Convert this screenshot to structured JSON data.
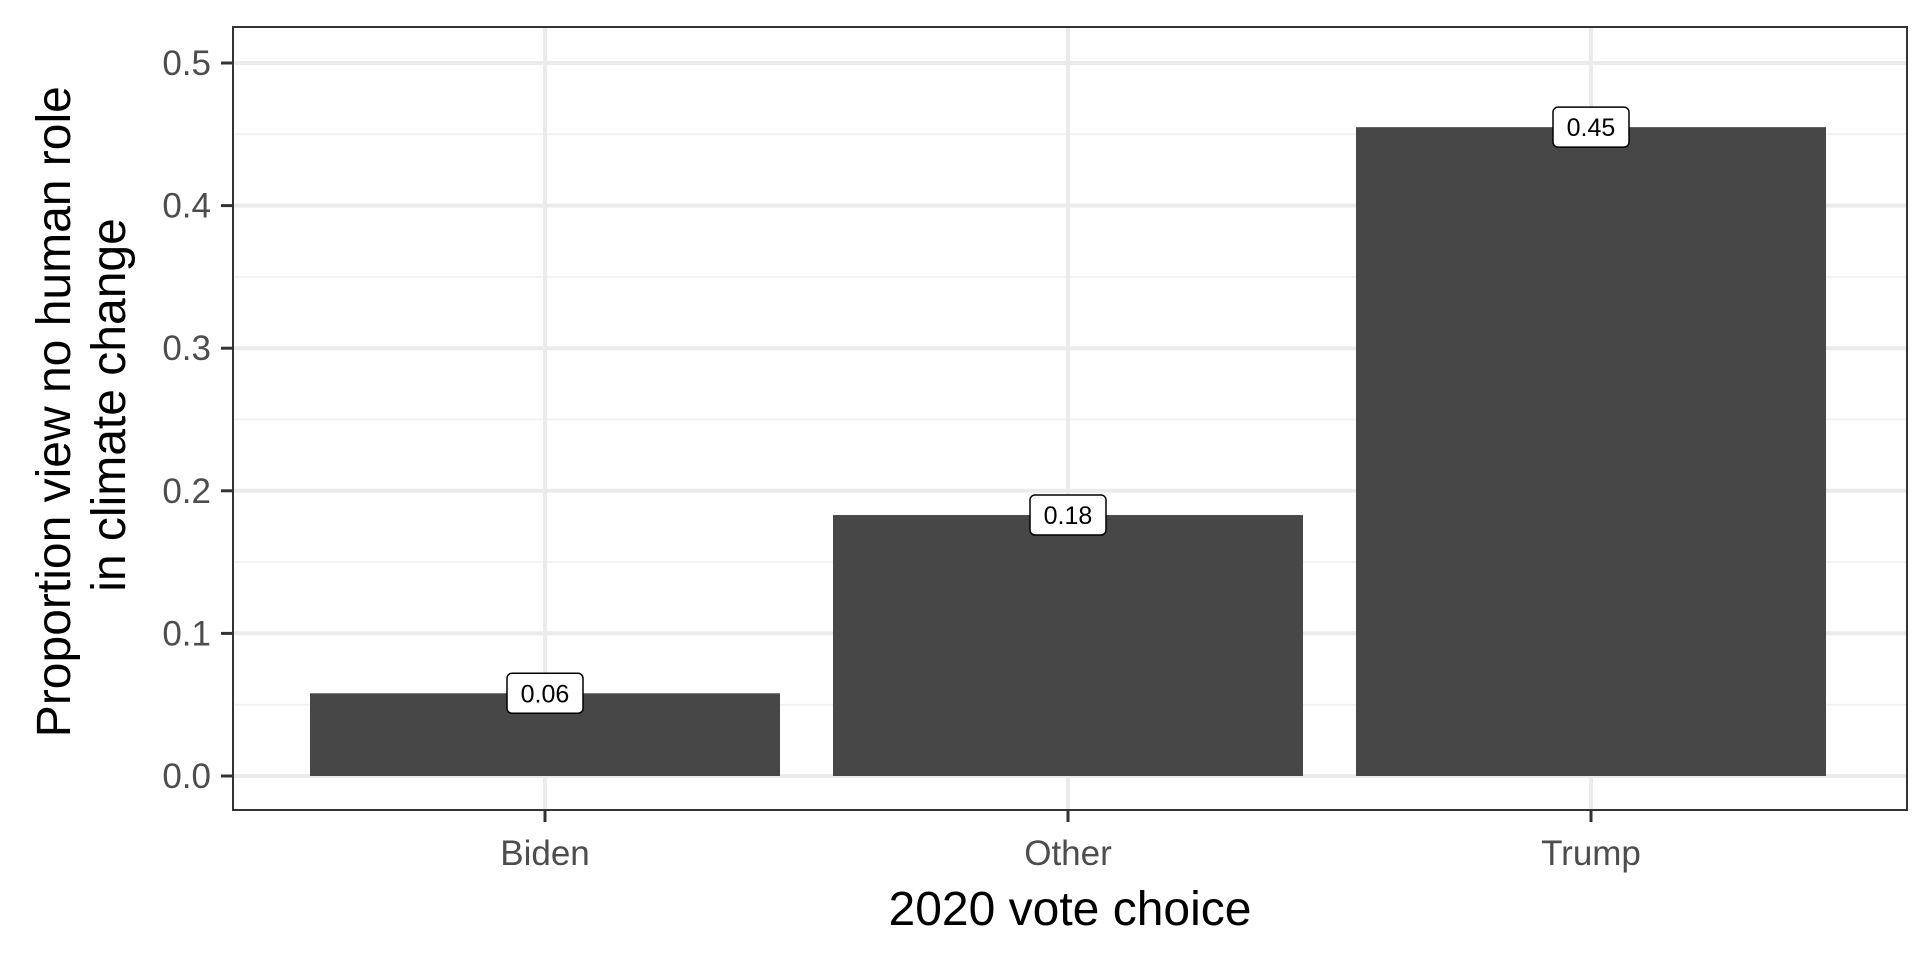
{
  "chart_data": {
    "type": "bar",
    "categories": [
      "Biden",
      "Other",
      "Trump"
    ],
    "values": [
      0.058,
      0.183,
      0.455
    ],
    "data_labels": [
      "0.06",
      "0.18",
      "0.45"
    ],
    "xlabel": "2020 vote choice",
    "ylabel_lines": [
      "Proportion view no human role",
      "in climate change"
    ],
    "ylim": [
      0,
      0.525
    ],
    "y_ticks": [
      0.0,
      0.1,
      0.2,
      0.3,
      0.4,
      0.5
    ],
    "y_tick_labels": [
      "0.0",
      "0.1",
      "0.2",
      "0.3",
      "0.4",
      "0.5"
    ],
    "grid": true,
    "legend": "none",
    "colors": {
      "bar": "#474747",
      "grid_major": "#ebebeb",
      "grid_minor": "#f2f2f2",
      "panel_border": "#333333",
      "tick_text": "#4d4d4d"
    }
  }
}
